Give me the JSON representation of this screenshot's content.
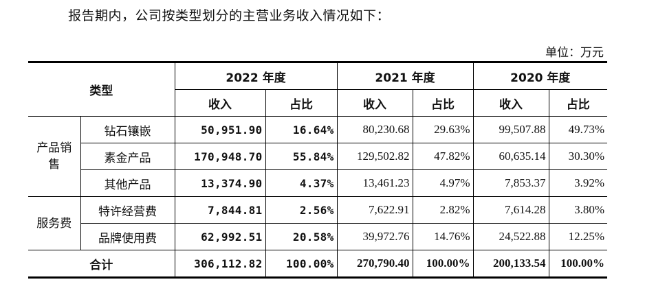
{
  "intro": "报告期内，公司按类型划分的主营业务收入情况如下：",
  "unit": "单位：万元",
  "table": {
    "header": {
      "type": "类型",
      "years": [
        "2022 年度",
        "2021 年度",
        "2020 年度"
      ],
      "revenue": "收入",
      "share": "占比"
    },
    "groups": [
      {
        "name": "产品销售",
        "rows": [
          {
            "item": "钻石镶嵌",
            "v": [
              "50,951.90",
              "16.64%",
              "80,230.68",
              "29.63%",
              "99,507.88",
              "49.73%"
            ]
          },
          {
            "item": "素金产品",
            "v": [
              "170,948.70",
              "55.84%",
              "129,502.82",
              "47.82%",
              "60,635.14",
              "30.30%"
            ]
          },
          {
            "item": "其他产品",
            "v": [
              "13,374.90",
              "4.37%",
              "13,461.23",
              "4.97%",
              "7,853.37",
              "3.92%"
            ]
          }
        ]
      },
      {
        "name": "服务费",
        "rows": [
          {
            "item": "特许经营费",
            "v": [
              "7,844.81",
              "2.56%",
              "7,622.91",
              "2.82%",
              "7,614.28",
              "3.80%"
            ]
          },
          {
            "item": "品牌使用费",
            "v": [
              "62,992.51",
              "20.58%",
              "39,972.76",
              "14.76%",
              "24,522.88",
              "12.25%"
            ]
          }
        ]
      }
    ],
    "total": {
      "label": "合计",
      "v": [
        "306,112.82",
        "100.00%",
        "270,790.40",
        "100.00%",
        "200,133.54",
        "100.00%"
      ]
    }
  }
}
